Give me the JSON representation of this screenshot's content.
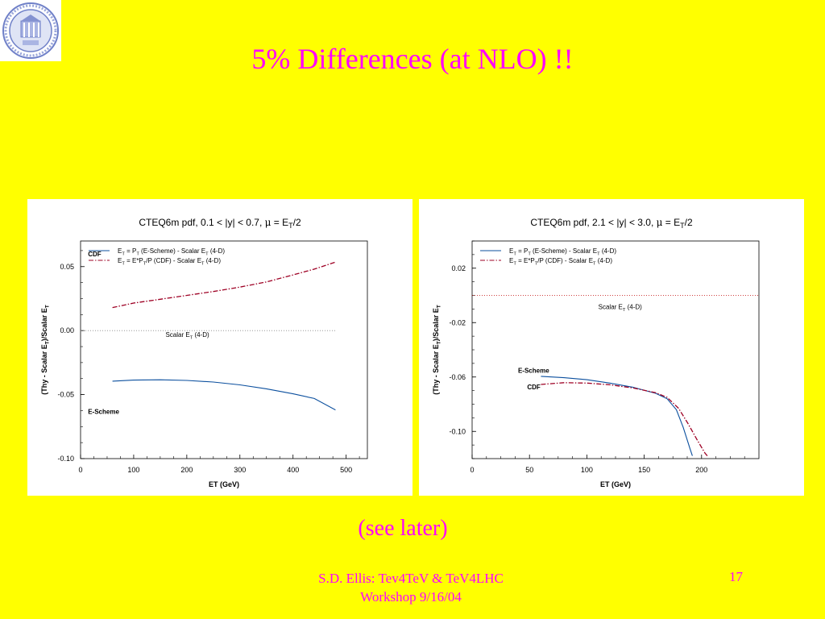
{
  "slide": {
    "title": "5% Differences (at NLO) !!",
    "note": "(see later)",
    "footer_line1": "S.D. Ellis: Tev4TeV & TeV4LHC",
    "footer_line2": "Workshop  9/16/04",
    "page_number": "17",
    "colors": {
      "background": "#ffff00",
      "text": "#ff00ff"
    },
    "logo_icon": "university-seal-icon"
  },
  "chart_data": [
    {
      "type": "line",
      "title": "CTEQ6m pdf,  0.1 < |y| < 0.7,    μ = E_T/2",
      "title_parts": {
        "pdf": "CTEQ6m pdf,  0.1 < |y| < 0.7,",
        "mu_sym": "μ",
        "eq": " = E",
        "sub": "T",
        "tail": "/2"
      },
      "xlabel": "ET (GeV)",
      "ylabel": "(Thy - Scalar E_T)/Scalar E_T",
      "xlim": [
        0,
        540
      ],
      "ylim": [
        -0.1,
        0.07
      ],
      "xticks": [
        "0",
        "100",
        "200",
        "300",
        "400",
        "500"
      ],
      "yticks": [
        "0.05",
        "0.00",
        "-0.05",
        "-0.10"
      ],
      "xtick_values": [
        0,
        100,
        200,
        300,
        400,
        500
      ],
      "ytick_values": [
        0.05,
        0.0,
        -0.05,
        -0.1
      ],
      "legend": [
        {
          "text": "E_T = P_T (E-Scheme) - Scalar E_T (4-D)",
          "style": "solid",
          "color": "#0b4f9e"
        },
        {
          "text": "E_T = E*P_T/P (CDF) - Scalar E_T (4-D)",
          "style": "dashdot",
          "color": "#9e0024"
        }
      ],
      "annotations": [
        "CDF",
        "E-Scheme",
        "Scalar E_T (4-D)"
      ],
      "series": [
        {
          "name": "E-Scheme",
          "color": "#0b4f9e",
          "style": "solid",
          "x": [
            60,
            100,
            150,
            200,
            250,
            300,
            350,
            400,
            440,
            480
          ],
          "y": [
            -0.0395,
            -0.0387,
            -0.0384,
            -0.0389,
            -0.0402,
            -0.0424,
            -0.0455,
            -0.0494,
            -0.053,
            -0.062
          ]
        },
        {
          "name": "CDF",
          "color": "#9e0024",
          "style": "dashdot",
          "x": [
            60,
            100,
            150,
            200,
            250,
            300,
            350,
            400,
            440,
            480
          ],
          "y": [
            0.018,
            0.0215,
            0.0245,
            0.0275,
            0.0305,
            0.034,
            0.038,
            0.0435,
            0.048,
            0.0535
          ]
        },
        {
          "name": "Scalar E_T (4-D)",
          "color": "#888888",
          "style": "dotted",
          "x": [
            0,
            480
          ],
          "y": [
            0.0,
            0.0
          ]
        }
      ]
    },
    {
      "type": "line",
      "title": "CTEQ6m pdf,  2.1 < |y| < 3.0,    μ = E_T/2",
      "title_parts": {
        "pdf": "CTEQ6m pdf,  2.1 < |y| < 3.0,",
        "mu_sym": "μ",
        "eq": " = E",
        "sub": "T",
        "tail": "/2"
      },
      "xlabel": "ET (GeV)",
      "ylabel": "(Thy - Scalar E_T)/Scalar E_T",
      "xlim": [
        0,
        250
      ],
      "ylim": [
        -0.12,
        0.04
      ],
      "xticks": [
        "0",
        "50",
        "100",
        "150",
        "200"
      ],
      "yticks": [
        "0.02",
        "-0.02",
        "-0.06",
        "-0.10"
      ],
      "xtick_values": [
        0,
        50,
        100,
        150,
        200
      ],
      "ytick_values": [
        0.02,
        -0.02,
        -0.06,
        -0.1
      ],
      "legend": [
        {
          "text": "E_T = P_T (E-Scheme) - Scalar E_T (4-D)",
          "style": "solid",
          "color": "#0b4f9e"
        },
        {
          "text": "E_T = E*P_T/P (CDF) - Scalar E_T (4-D)",
          "style": "dashdot",
          "color": "#9e0024"
        }
      ],
      "annotations": [
        "Scalar E_T (4-D)",
        "E-Scheme",
        "CDF"
      ],
      "series": [
        {
          "name": "E-Scheme",
          "color": "#0b4f9e",
          "style": "solid",
          "x": [
            60,
            80,
            100,
            120,
            140,
            160,
            170,
            178,
            184,
            190,
            192
          ],
          "y": [
            -0.0595,
            -0.0605,
            -0.062,
            -0.0645,
            -0.0675,
            -0.072,
            -0.076,
            -0.084,
            -0.097,
            -0.113,
            -0.118
          ]
        },
        {
          "name": "CDF",
          "color": "#9e0024",
          "style": "dashdot",
          "x": [
            60,
            80,
            100,
            120,
            140,
            160,
            170,
            180,
            188,
            196,
            203,
            205
          ],
          "y": [
            -0.0655,
            -0.0642,
            -0.0645,
            -0.0657,
            -0.068,
            -0.0715,
            -0.075,
            -0.083,
            -0.094,
            -0.106,
            -0.116,
            -0.118
          ]
        },
        {
          "name": "Scalar E_T (4-D)",
          "color": "#c00000",
          "style": "dotted",
          "x": [
            0,
            250
          ],
          "y": [
            0.0,
            0.0
          ]
        }
      ]
    }
  ]
}
